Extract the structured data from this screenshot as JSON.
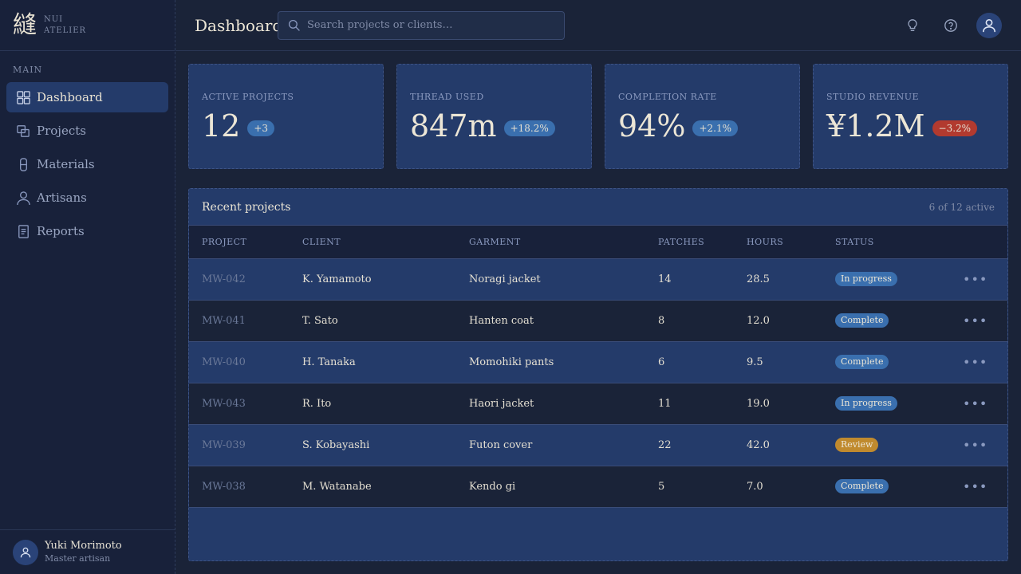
{
  "brand": {
    "kanji": "縫",
    "line1": "NUI",
    "line2": "ATELIER"
  },
  "sidebar": {
    "section_label": "MAIN",
    "items": [
      {
        "label": "Dashboard",
        "icon": "grid-icon",
        "active": true
      },
      {
        "label": "Projects",
        "icon": "layers-icon",
        "active": false
      },
      {
        "label": "Materials",
        "icon": "spool-icon",
        "active": false
      },
      {
        "label": "Artisans",
        "icon": "person-icon",
        "active": false
      },
      {
        "label": "Reports",
        "icon": "document-icon",
        "active": false
      }
    ],
    "user": {
      "name": "Yuki Morimoto",
      "role": "Master artisan"
    }
  },
  "header": {
    "title": "Dashboard",
    "search_placeholder": "Search projects or clients…"
  },
  "stats": [
    {
      "label": "ACTIVE PROJECTS",
      "value": "12",
      "badge": "+3",
      "badge_type": "positive"
    },
    {
      "label": "THREAD USED",
      "value": "847m",
      "badge": "+18.2%",
      "badge_type": "positive"
    },
    {
      "label": "COMPLETION RATE",
      "value": "94%",
      "badge": "+2.1%",
      "badge_type": "positive"
    },
    {
      "label": "STUDIO REVENUE",
      "value": "¥1.2M",
      "badge": "−3.2%",
      "badge_type": "negative"
    }
  ],
  "table": {
    "title": "Recent projects",
    "meta": "6 of 12 active",
    "columns": [
      "PROJECT",
      "CLIENT",
      "GARMENT",
      "PATCHES",
      "HOURS",
      "STATUS"
    ],
    "rows": [
      {
        "project": "MW-042",
        "client": "K. Yamamoto",
        "garment": "Noragi jacket",
        "patches": "14",
        "hours": "28.5",
        "status": "In progress"
      },
      {
        "project": "MW-041",
        "client": "T. Sato",
        "garment": "Hanten coat",
        "patches": "8",
        "hours": "12.0",
        "status": "Complete"
      },
      {
        "project": "MW-040",
        "client": "H. Tanaka",
        "garment": "Momohiki pants",
        "patches": "6",
        "hours": "9.5",
        "status": "Complete"
      },
      {
        "project": "MW-043",
        "client": "R. Ito",
        "garment": "Haori jacket",
        "patches": "11",
        "hours": "19.0",
        "status": "In progress"
      },
      {
        "project": "MW-039",
        "client": "S. Kobayashi",
        "garment": "Futon cover",
        "patches": "22",
        "hours": "42.0",
        "status": "Review"
      },
      {
        "project": "MW-038",
        "client": "M. Watanabe",
        "garment": "Kendo gi",
        "patches": "5",
        "hours": "7.0",
        "status": "Complete"
      }
    ],
    "row_action": "•••"
  },
  "colors": {
    "accent": "#243b6a",
    "status_blue": "#3a6fae",
    "status_review": "#c08a2e",
    "negative": "#b23a2f"
  }
}
